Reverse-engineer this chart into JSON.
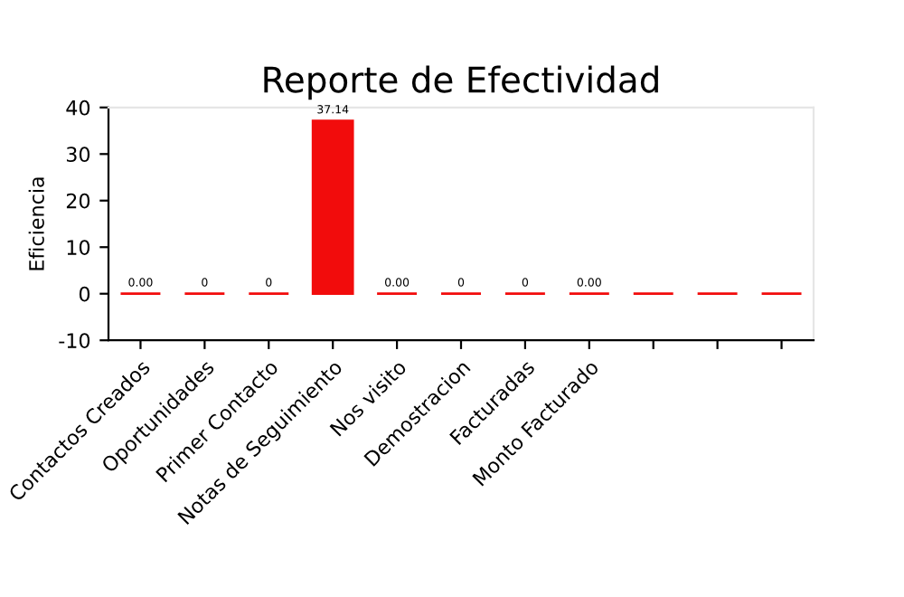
{
  "chart_data": {
    "type": "bar",
    "title": "Reporte de Efectividad",
    "ylabel": "Eficiencia",
    "categories": [
      "Contactos Creados",
      "Oportunidades",
      "Primer Contacto",
      "Notas de Seguimiento",
      "Nos visito",
      "Demostracion",
      "Facturadas",
      "Monto Facturado",
      null,
      null,
      null
    ],
    "values": [
      0,
      0,
      0,
      37.14,
      0,
      0,
      0,
      0,
      0,
      0,
      0
    ],
    "value_labels": [
      "0.00",
      "0",
      "0",
      "37.14",
      "0.00",
      "0",
      "0",
      "0.00",
      null,
      null,
      null
    ],
    "color": "#f20c0c",
    "ylim": [
      -10,
      40
    ],
    "yticks": [
      -10,
      0,
      10,
      20,
      30,
      40
    ],
    "grid": false,
    "legend": false
  }
}
